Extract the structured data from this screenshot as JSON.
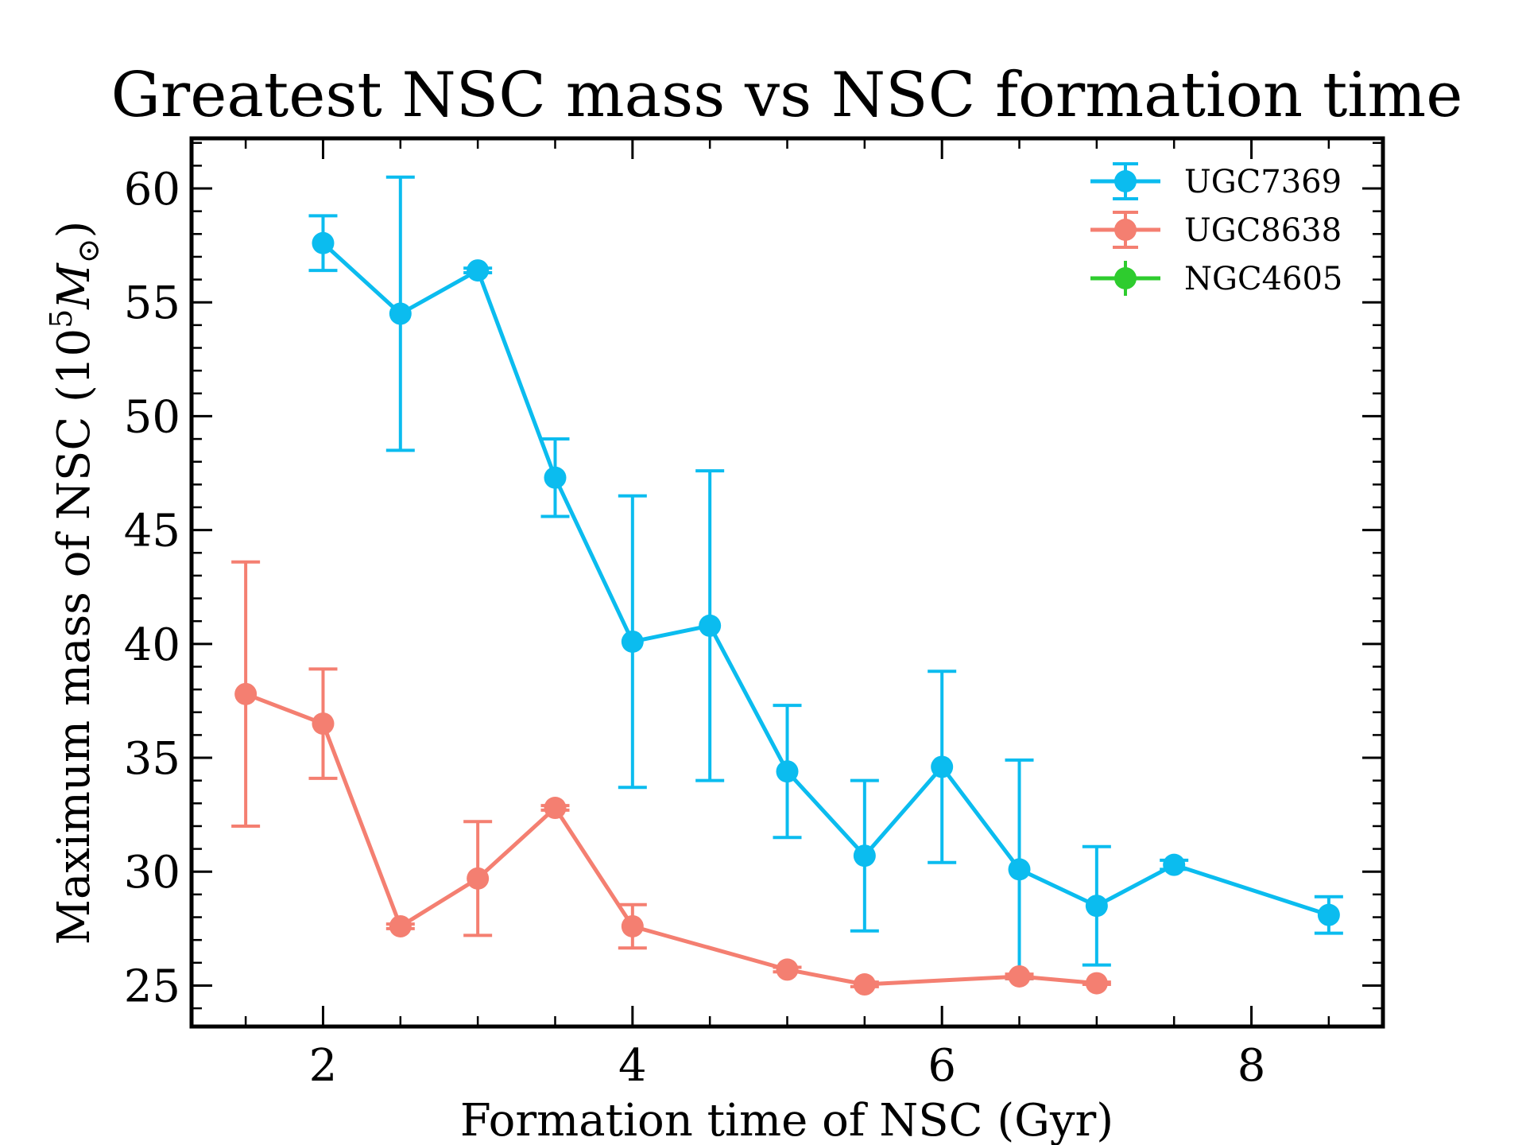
{
  "chart_data": {
    "type": "line",
    "title": "Greatest NSC mass vs NSC formation time",
    "xlabel": "Formation time of NSC (Gyr)",
    "ylabel_prefix": "Maximum mass of NSC (10",
    "ylabel_sup": "5",
    "ylabel_unit": "M",
    "ylabel_sub": "⊙",
    "ylabel_suffix": ")",
    "xlim": [
      1.15,
      8.85
    ],
    "ylim": [
      23.2,
      62.2
    ],
    "x_ticks": [
      2,
      4,
      6,
      8
    ],
    "x_tick_labels": [
      "2",
      "4",
      "6",
      "8"
    ],
    "y_ticks": [
      25,
      30,
      35,
      40,
      45,
      50,
      55,
      60
    ],
    "y_tick_labels": [
      "25",
      "30",
      "35",
      "40",
      "45",
      "50",
      "55",
      "60"
    ],
    "x_minor_step": 0.5,
    "y_minor_step": 1,
    "legend_position": "top-right",
    "grid": false,
    "series": [
      {
        "name": "UGC7369",
        "color": "#0bbcef",
        "x": [
          2.0,
          2.5,
          3.0,
          3.5,
          4.0,
          4.5,
          5.0,
          5.5,
          6.0,
          6.5,
          7.0,
          7.5,
          8.5
        ],
        "y": [
          57.6,
          54.5,
          56.4,
          47.3,
          40.1,
          40.8,
          34.4,
          30.7,
          34.6,
          30.1,
          28.5,
          30.3,
          28.1
        ],
        "err": [
          1.2,
          6.0,
          0.1,
          1.7,
          6.4,
          6.8,
          2.9,
          3.3,
          4.2,
          4.8,
          2.6,
          0.2,
          0.8
        ]
      },
      {
        "name": "UGC8638",
        "color": "#f47f71",
        "x": [
          1.5,
          2.0,
          2.5,
          3.0,
          3.5,
          4.0,
          5.0,
          5.5,
          6.5,
          7.0
        ],
        "y": [
          37.8,
          36.5,
          27.6,
          29.7,
          32.8,
          27.6,
          25.7,
          25.05,
          25.4,
          25.1
        ],
        "err": [
          5.8,
          2.4,
          0.1,
          2.5,
          0.1,
          0.95,
          0.1,
          0.1,
          0.1,
          0.05
        ]
      },
      {
        "name": "NGC4605",
        "color": "#2ecc2e",
        "x": [],
        "y": [],
        "err": []
      }
    ]
  }
}
